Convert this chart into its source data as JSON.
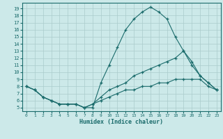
{
  "xlabel": "Humidex (Indice chaleur)",
  "bg_color": "#cce9e9",
  "line_color": "#1a6b6b",
  "grid_color": "#aacccc",
  "xlim": [
    -0.5,
    23.5
  ],
  "ylim": [
    4.5,
    19.8
  ],
  "yticks": [
    5,
    6,
    7,
    8,
    9,
    10,
    11,
    12,
    13,
    14,
    15,
    16,
    17,
    18,
    19
  ],
  "xticks": [
    0,
    1,
    2,
    3,
    4,
    5,
    6,
    7,
    8,
    9,
    10,
    11,
    12,
    13,
    14,
    15,
    16,
    17,
    18,
    19,
    20,
    21,
    22,
    23
  ],
  "line1_x": [
    0,
    1,
    2,
    3,
    4,
    5,
    6,
    7,
    8,
    9,
    10,
    11,
    12,
    13,
    14,
    15,
    16,
    17,
    18,
    19,
    20,
    21,
    22,
    23
  ],
  "line1_y": [
    8.0,
    7.5,
    6.5,
    6.0,
    5.5,
    5.5,
    5.5,
    5.0,
    5.0,
    8.5,
    11.0,
    13.5,
    16.0,
    17.5,
    18.5,
    19.2,
    18.5,
    17.5,
    15.0,
    13.0,
    11.5,
    9.5,
    8.5,
    7.5
  ],
  "line2_x": [
    0,
    1,
    2,
    3,
    4,
    5,
    6,
    7,
    8,
    9,
    10,
    11,
    12,
    13,
    14,
    15,
    16,
    17,
    18,
    19,
    20,
    21,
    22,
    23
  ],
  "line2_y": [
    8.0,
    7.5,
    6.5,
    6.0,
    5.5,
    5.5,
    5.5,
    5.0,
    5.5,
    6.5,
    7.5,
    8.0,
    8.5,
    9.5,
    10.0,
    10.5,
    11.0,
    11.5,
    12.0,
    13.0,
    11.0,
    9.5,
    8.5,
    7.5
  ],
  "line3_x": [
    0,
    1,
    2,
    3,
    4,
    5,
    6,
    7,
    8,
    9,
    10,
    11,
    12,
    13,
    14,
    15,
    16,
    17,
    18,
    19,
    20,
    21,
    22,
    23
  ],
  "line3_y": [
    8.0,
    7.5,
    6.5,
    6.0,
    5.5,
    5.5,
    5.5,
    5.0,
    5.5,
    6.0,
    6.5,
    7.0,
    7.5,
    7.5,
    8.0,
    8.0,
    8.5,
    8.5,
    9.0,
    9.0,
    9.0,
    9.0,
    8.0,
    7.5
  ]
}
